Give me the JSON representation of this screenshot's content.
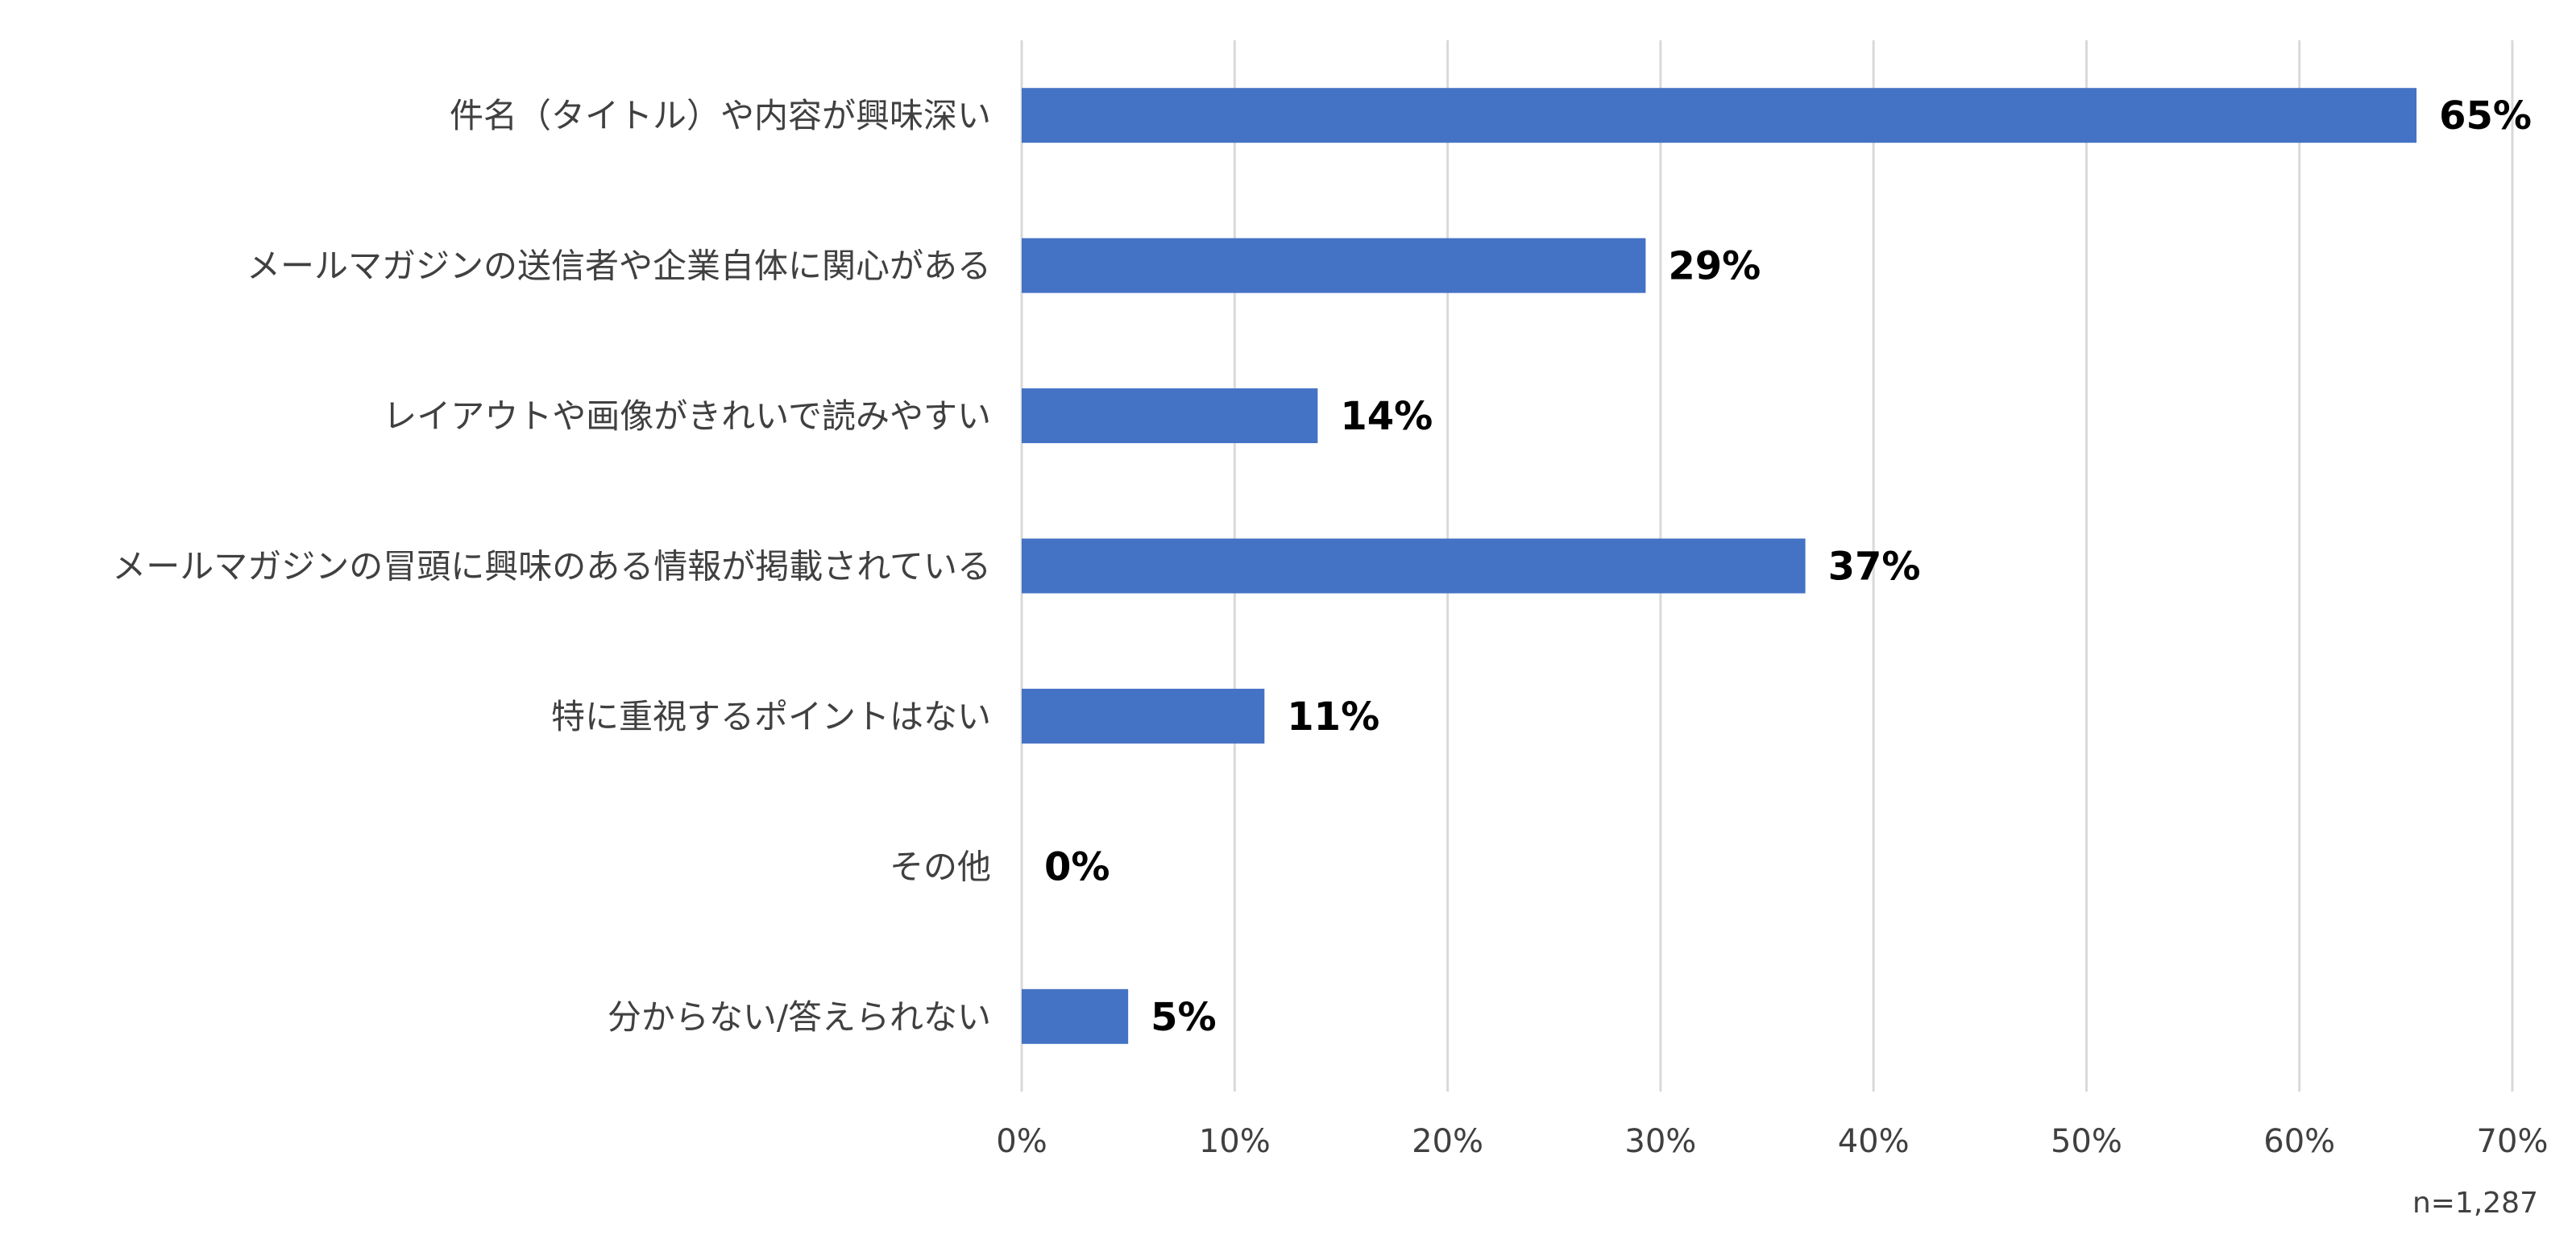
{
  "chart_data": {
    "type": "bar",
    "orientation": "horizontal",
    "categories": [
      "件名（タイトル）や内容が興味深い",
      "メールマガジンの送信者や企業自体に関心がある",
      "レイアウトや画像がきれいで読みやすい",
      "メールマガジンの冒頭に興味のある情報が掲載されている",
      "特に重視するポイントはない",
      "その他",
      "分からない/答えられない"
    ],
    "values": [
      65.5,
      29.3,
      13.9,
      36.8,
      11.4,
      0,
      5.0
    ],
    "data_labels": [
      "65%",
      "29%",
      "14%",
      "37%",
      "11%",
      "0%",
      "5%"
    ],
    "xlim": [
      0,
      70
    ],
    "x_ticks": [
      0,
      10,
      20,
      30,
      40,
      50,
      60,
      70
    ],
    "x_tick_labels": [
      "0%",
      "10%",
      "20%",
      "30%",
      "40%",
      "50%",
      "60%",
      "70%"
    ],
    "grid": true,
    "bar_color": "#4472c4",
    "note": "n=1,287"
  }
}
